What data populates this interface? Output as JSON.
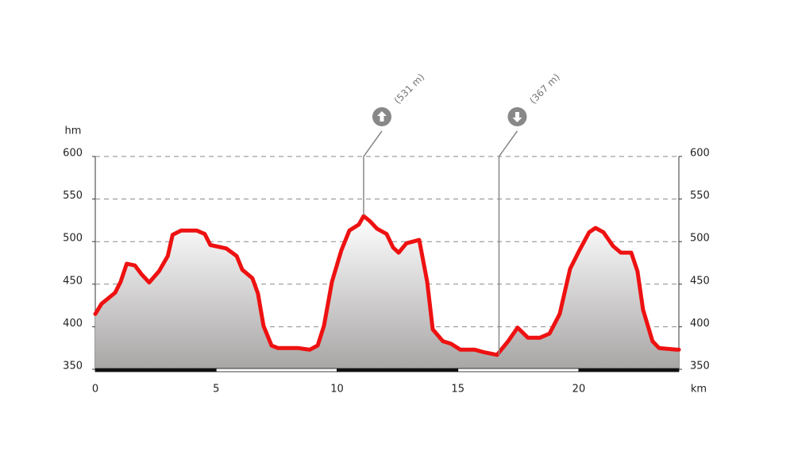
{
  "chart_data": {
    "type": "area",
    "y_label": "hm",
    "x_label": "km",
    "x": [
      0,
      0.26,
      0.82,
      1.05,
      1.3,
      1.64,
      1.9,
      2.23,
      2.63,
      3.0,
      3.2,
      3.55,
      4.2,
      4.53,
      4.76,
      5.42,
      5.85,
      6.08,
      6.5,
      6.73,
      6.96,
      7.29,
      7.55,
      8.37,
      8.87,
      9.2,
      9.46,
      9.79,
      10.18,
      10.51,
      10.9,
      11.1,
      11.36,
      11.66,
      12.05,
      12.32,
      12.55,
      12.87,
      13.4,
      13.73,
      13.96,
      14.38,
      14.71,
      15.1,
      15.7,
      16.09,
      16.62,
      17.08,
      17.47,
      17.9,
      18.39,
      18.79,
      19.21,
      19.64,
      20.03,
      20.43,
      20.69,
      21.02,
      21.41,
      21.74,
      22.17,
      22.43,
      22.66,
      23.05,
      23.32,
      24.04,
      24.14
    ],
    "values": [
      415,
      427,
      440,
      453,
      474,
      472,
      462,
      452,
      465,
      483,
      508,
      513,
      513,
      509,
      496,
      492,
      483,
      467,
      457,
      439,
      401,
      378,
      375,
      375,
      373,
      378,
      401,
      453,
      490,
      513,
      520,
      530,
      524,
      515,
      509,
      493,
      487,
      498,
      502,
      453,
      397,
      383,
      380,
      373,
      373,
      370,
      367,
      383,
      399,
      387,
      387,
      392,
      415,
      468,
      490,
      511,
      516,
      511,
      495,
      487,
      487,
      465,
      420,
      383,
      375,
      373,
      373
    ],
    "color": "#ee1111",
    "xlim": [
      0,
      24.14
    ],
    "xticks": [
      0,
      5,
      10,
      15,
      20
    ],
    "ylim": [
      350,
      600
    ],
    "yticks": [
      350,
      400,
      450,
      500,
      550,
      600
    ],
    "grid": true,
    "annotations": [
      {
        "label": "(531 m)",
        "x": 11.1,
        "value": 531,
        "direction": "up"
      },
      {
        "label": "(367 m)",
        "x": 16.7,
        "value": 367,
        "direction": "down"
      }
    ]
  }
}
